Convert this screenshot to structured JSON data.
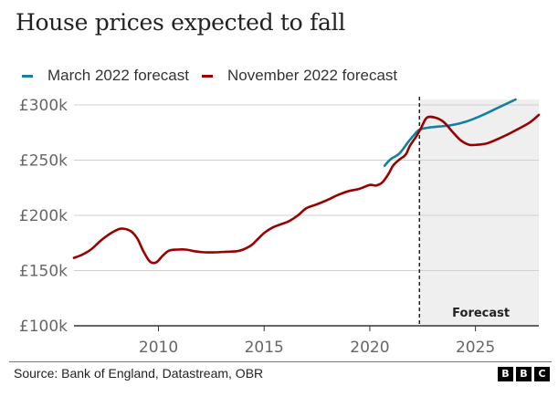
{
  "header": {
    "title": "House prices expected to fall"
  },
  "footer": {
    "source": "Source: Bank of England, Datastream, OBR",
    "logo_letters": [
      "B",
      "B",
      "C"
    ]
  },
  "chart_data": {
    "type": "line",
    "title": "House prices expected to fall",
    "xlabel": "",
    "ylabel": "",
    "xlim": [
      2006.0,
      2028.0
    ],
    "ylim": [
      100000,
      300000
    ],
    "grid": true,
    "legend_position": "top-left",
    "x_ticks": [
      2010,
      2015,
      2020,
      2025
    ],
    "x_tick_labels": [
      "2010",
      "2015",
      "2020",
      "2025"
    ],
    "y_ticks": [
      100000,
      150000,
      200000,
      250000,
      300000
    ],
    "y_tick_labels": [
      "£100k",
      "£150k",
      "£200k",
      "£250k",
      "£300k"
    ],
    "forecast_start": 2022.35,
    "forecast_label": "Forecast",
    "forecast_shade_color": "#efefef",
    "series": [
      {
        "name": "March 2022 forecast",
        "color": "#1380A1",
        "points": [
          [
            2020.7,
            245000
          ],
          [
            2021.0,
            251000
          ],
          [
            2021.4,
            256000
          ],
          [
            2021.8,
            266000
          ],
          [
            2022.1,
            273000
          ],
          [
            2022.35,
            277500
          ],
          [
            2022.8,
            279500
          ],
          [
            2023.3,
            280500
          ],
          [
            2023.8,
            281500
          ],
          [
            2024.3,
            283500
          ],
          [
            2024.8,
            286500
          ],
          [
            2025.3,
            290500
          ],
          [
            2025.8,
            295000
          ],
          [
            2026.3,
            299500
          ],
          [
            2026.9,
            305000
          ]
        ]
      },
      {
        "name": "November 2022 forecast",
        "color": "#990000",
        "points": [
          [
            2006.0,
            161500
          ],
          [
            2006.4,
            164500
          ],
          [
            2006.8,
            169000
          ],
          [
            2007.2,
            176000
          ],
          [
            2007.6,
            182000
          ],
          [
            2008.0,
            186500
          ],
          [
            2008.3,
            188000
          ],
          [
            2008.7,
            185500
          ],
          [
            2009.0,
            179000
          ],
          [
            2009.3,
            167000
          ],
          [
            2009.6,
            158000
          ],
          [
            2009.9,
            157500
          ],
          [
            2010.2,
            163500
          ],
          [
            2010.5,
            168000
          ],
          [
            2010.9,
            169000
          ],
          [
            2011.3,
            169000
          ],
          [
            2011.7,
            167500
          ],
          [
            2012.2,
            166500
          ],
          [
            2012.7,
            166500
          ],
          [
            2013.2,
            167000
          ],
          [
            2013.7,
            167500
          ],
          [
            2014.0,
            169000
          ],
          [
            2014.4,
            173000
          ],
          [
            2014.7,
            178500
          ],
          [
            2015.0,
            184000
          ],
          [
            2015.4,
            189000
          ],
          [
            2015.8,
            192000
          ],
          [
            2016.2,
            195000
          ],
          [
            2016.6,
            200000
          ],
          [
            2017.0,
            206500
          ],
          [
            2017.5,
            210000
          ],
          [
            2018.0,
            214000
          ],
          [
            2018.5,
            218500
          ],
          [
            2019.0,
            222000
          ],
          [
            2019.5,
            224000
          ],
          [
            2020.0,
            227500
          ],
          [
            2020.3,
            227000
          ],
          [
            2020.6,
            230000
          ],
          [
            2020.9,
            238000
          ],
          [
            2021.1,
            245000
          ],
          [
            2021.4,
            250500
          ],
          [
            2021.7,
            255000
          ],
          [
            2021.9,
            263000
          ],
          [
            2022.2,
            271500
          ],
          [
            2022.45,
            280000
          ],
          [
            2022.7,
            288500
          ],
          [
            2023.1,
            288500
          ],
          [
            2023.5,
            284500
          ],
          [
            2023.9,
            276000
          ],
          [
            2024.3,
            268000
          ],
          [
            2024.7,
            264000
          ],
          [
            2025.1,
            264000
          ],
          [
            2025.6,
            265500
          ],
          [
            2026.1,
            269500
          ],
          [
            2026.6,
            274000
          ],
          [
            2027.1,
            279000
          ],
          [
            2027.6,
            284500
          ],
          [
            2028.0,
            291000
          ]
        ]
      }
    ]
  }
}
